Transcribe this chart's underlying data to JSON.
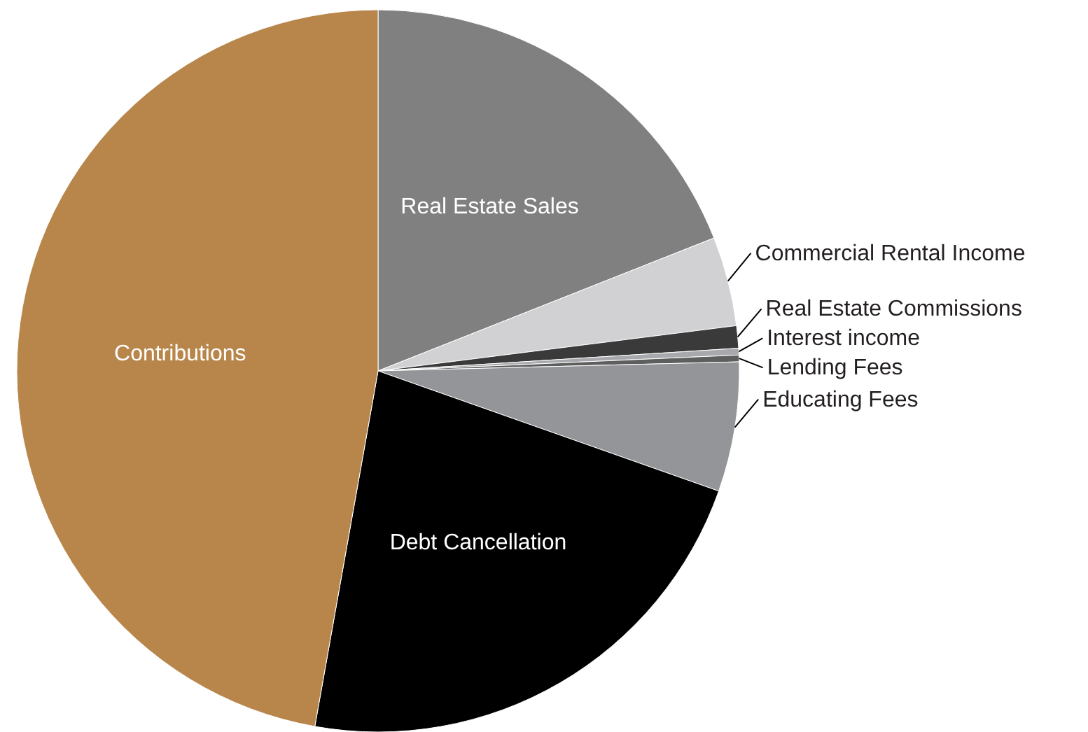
{
  "chart_data": {
    "type": "pie",
    "categories": [
      "Real Estate Sales",
      "Commercial Rental Income",
      "Real Estate Commissions",
      "Interest income",
      "Lending Fees",
      "Educating Fees",
      "Debt Cancellation",
      "Contributions"
    ],
    "values": [
      19.0,
      4.0,
      1.0,
      0.3,
      0.3,
      5.8,
      22.4,
      47.2
    ],
    "colors": [
      "#808080",
      "#d1d1d3",
      "#3a3a3a",
      "#a7a9ac",
      "#5e5e5e",
      "#939598",
      "#000000",
      "#b8864a"
    ]
  }
}
